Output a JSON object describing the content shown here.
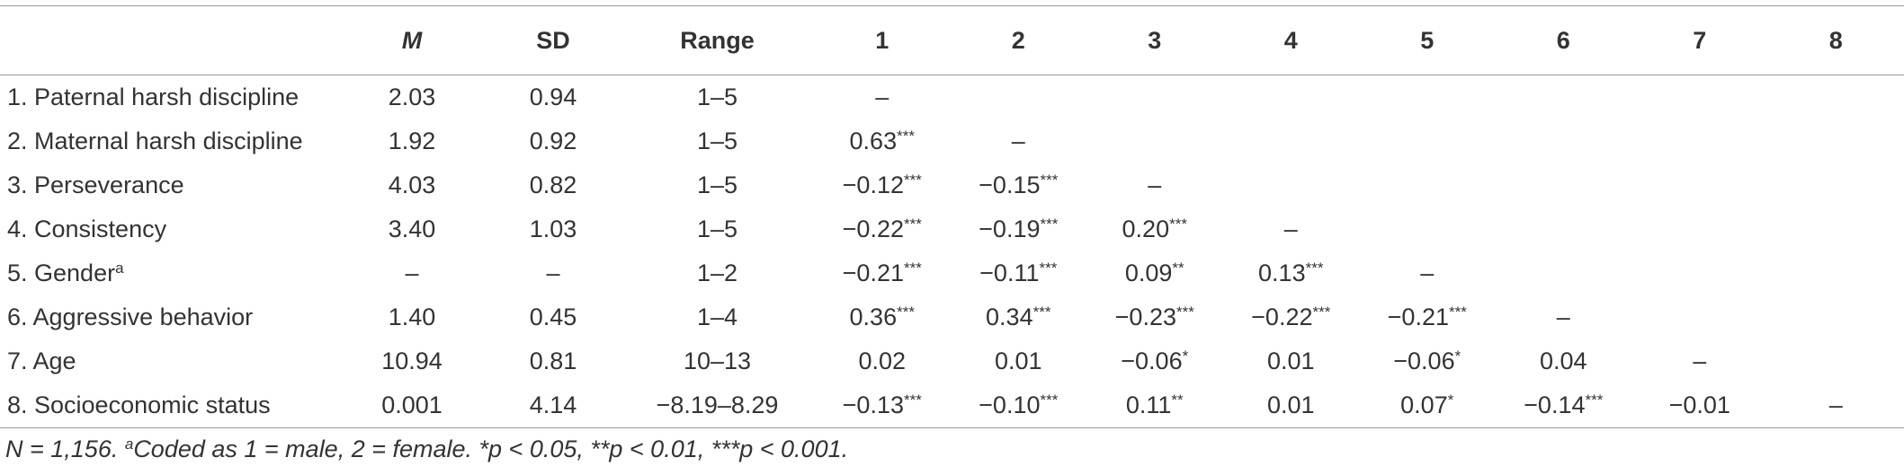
{
  "table": {
    "header": [
      "",
      "M",
      "SD",
      "Range",
      "1",
      "2",
      "3",
      "4",
      "5",
      "6",
      "7",
      "8"
    ],
    "rows": [
      [
        "1. Paternal harsh discipline",
        "2.03",
        "0.94",
        "1–5",
        "–",
        null,
        null,
        null,
        null,
        null,
        null,
        null
      ],
      [
        "2. Maternal harsh discipline",
        "1.92",
        "0.92",
        "1–5",
        {
          "text": "0.63",
          "sup": "***"
        },
        "–",
        null,
        null,
        null,
        null,
        null,
        null
      ],
      [
        "3. Perseverance",
        "4.03",
        "0.82",
        "1–5",
        {
          "text": "−0.12",
          "sup": "***"
        },
        {
          "text": "−0.15",
          "sup": "***"
        },
        "–",
        null,
        null,
        null,
        null,
        null
      ],
      [
        "4. Consistency",
        "3.40",
        "1.03",
        "1–5",
        {
          "text": "−0.22",
          "sup": "***"
        },
        {
          "text": "−0.19",
          "sup": "***"
        },
        {
          "text": "0.20",
          "sup": "***"
        },
        "–",
        null,
        null,
        null,
        null
      ],
      [
        {
          "text": "5. Gender",
          "sup": "a"
        },
        "–",
        "–",
        "1–2",
        {
          "text": "−0.21",
          "sup": "***"
        },
        {
          "text": "−0.11",
          "sup": "***"
        },
        {
          "text": "0.09",
          "sup": "**"
        },
        {
          "text": "0.13",
          "sup": "***"
        },
        "–",
        null,
        null,
        null
      ],
      [
        "6. Aggressive behavior",
        "1.40",
        "0.45",
        "1–4",
        {
          "text": "0.36",
          "sup": "***"
        },
        {
          "text": "0.34",
          "sup": "***"
        },
        {
          "text": "−0.23",
          "sup": "***"
        },
        {
          "text": "−0.22",
          "sup": "***"
        },
        {
          "text": "−0.21",
          "sup": "***"
        },
        "–",
        null,
        null
      ],
      [
        "7. Age",
        "10.94",
        "0.81",
        "10–13",
        "0.02",
        "0.01",
        {
          "text": "−0.06",
          "sup": "*"
        },
        "0.01",
        {
          "text": "−0.06",
          "sup": "*"
        },
        "0.04",
        "–",
        null
      ],
      [
        "8. Socioeconomic status",
        "0.001",
        "4.14",
        "−8.19–8.29",
        {
          "text": "−0.13",
          "sup": "***"
        },
        {
          "text": "−0.10",
          "sup": "***"
        },
        {
          "text": "0.11",
          "sup": "**"
        },
        "0.01",
        {
          "text": "0.07",
          "sup": "*"
        },
        {
          "text": "−0.14",
          "sup": "***"
        },
        "−0.01",
        "–"
      ]
    ]
  },
  "footnote": {
    "lead": "N = 1,156. ",
    "sup": "a",
    "rest": "Coded as 1 = male, 2 = female. *p < 0.05, **p < 0.01, ***p < 0.001."
  }
}
